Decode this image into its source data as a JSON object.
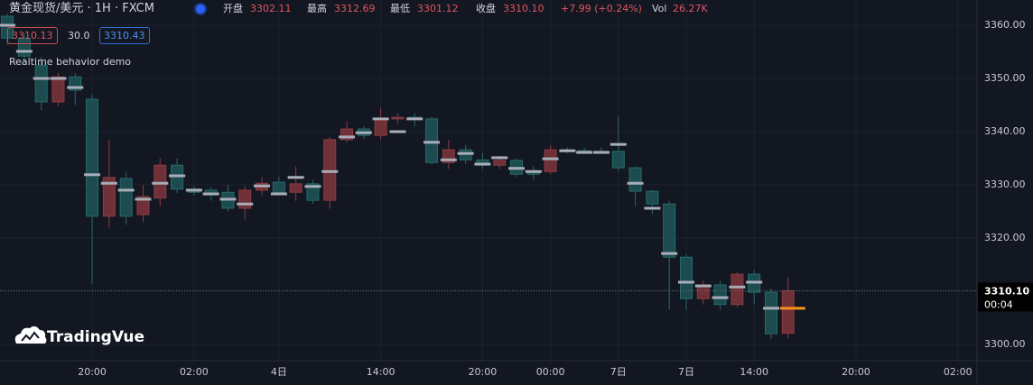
{
  "chart_data": {
    "type": "candlestick",
    "x": [
      0,
      1,
      2,
      3,
      4,
      5,
      6,
      7,
      8,
      9,
      10,
      11,
      12,
      13,
      14,
      15,
      16,
      17,
      18,
      19,
      20,
      21,
      22,
      23,
      24,
      25,
      26,
      27,
      28,
      29,
      30,
      31,
      32,
      33,
      34,
      35,
      36,
      37,
      38,
      39,
      40,
      41,
      42,
      43,
      44,
      45,
      46
    ],
    "open": [
      3361.7,
      3357.6,
      3352.5,
      3345.6,
      3350.3,
      3346.1,
      3324.1,
      3331.2,
      3324.4,
      3327.5,
      3333.7,
      3329.2,
      3329.0,
      3328.6,
      3325.6,
      3329.0,
      3330.5,
      3328.6,
      3330.2,
      3327.1,
      3338.5,
      3340.5,
      3339.3,
      3342.4,
      3342.7,
      3342.4,
      3334.2,
      3336.6,
      3334.7,
      3333.7,
      3334.6,
      3332.5,
      3332.5,
      3336.6,
      3336.4,
      3336.3,
      3336.3,
      3333.2,
      3328.8,
      3326.4,
      3316.4,
      3308.6,
      3311.2,
      3307.5,
      3313.2,
      3309.8,
      3302.11
    ],
    "high": [
      3362.2,
      3358.5,
      3354.0,
      3351.0,
      3351.0,
      3347.0,
      3338.5,
      3332.5,
      3330.0,
      3335.0,
      3335.0,
      3329.8,
      3329.5,
      3330.0,
      3329.8,
      3331.5,
      3331.5,
      3333.5,
      3331.0,
      3339.0,
      3342.0,
      3341.0,
      3344.5,
      3343.5,
      3343.5,
      3342.8,
      3338.5,
      3337.5,
      3336.0,
      3335.5,
      3335.0,
      3333.5,
      3337.5,
      3337.0,
      3337.0,
      3337.0,
      3343.0,
      3333.5,
      3329.0,
      3327.0,
      3317.0,
      3312.0,
      3312.0,
      3313.5,
      3314.0,
      3310.5,
      3312.69
    ],
    "low": [
      3356.3,
      3353.0,
      3344.0,
      3344.8,
      3345.0,
      3311.4,
      3322.0,
      3322.5,
      3323.0,
      3326.0,
      3328.5,
      3328.0,
      3327.0,
      3325.0,
      3323.5,
      3328.0,
      3328.0,
      3327.0,
      3326.5,
      3325.5,
      3338.0,
      3338.6,
      3338.5,
      3341.5,
      3341.0,
      3333.8,
      3333.0,
      3334.0,
      3333.0,
      3333.0,
      3331.5,
      3331.0,
      3332.0,
      3336.0,
      3335.8,
      3335.8,
      3332.5,
      3326.0,
      3324.5,
      3306.6,
      3306.5,
      3307.5,
      3306.5,
      3307.0,
      3307.5,
      3301.0,
      3301.12
    ],
    "close": [
      3357.6,
      3354.2,
      3345.6,
      3350.3,
      3347.8,
      3324.1,
      3331.4,
      3324.1,
      3327.8,
      3333.7,
      3329.2,
      3328.6,
      3328.1,
      3325.6,
      3329.0,
      3330.3,
      3328.6,
      3330.2,
      3327.1,
      3338.5,
      3340.5,
      3339.3,
      3342.4,
      3342.7,
      3342.4,
      3334.2,
      3336.6,
      3334.7,
      3333.7,
      3334.6,
      3332.0,
      3332.0,
      3336.6,
      3336.4,
      3336.3,
      3336.2,
      3333.2,
      3328.8,
      3326.4,
      3316.4,
      3308.6,
      3311.2,
      3307.5,
      3313.2,
      3309.8,
      3302.0,
      3310.1
    ],
    "up_color": "#6f3037",
    "up_border": "#8d3b43",
    "down_color": "#1c4c4f",
    "down_border": "#276a69",
    "overlay": {
      "color": "#a9adb8",
      "last_color": "#f7931a",
      "values": [
        3360,
        3355.1,
        3350,
        3350,
        3348.3,
        3331.9,
        3330.3,
        3329,
        3327.3,
        3330.3,
        3331.7,
        3329,
        3328.3,
        3327.3,
        3326.4,
        3329.8,
        3328.3,
        3331.4,
        3329.7,
        3332.5,
        3339,
        3339.8,
        3342.4,
        3340,
        3342.4,
        3338,
        3334.7,
        3335.9,
        3333.9,
        3335.1,
        3333.1,
        3332.5,
        3334.9,
        3336.4,
        3336.1,
        3336.1,
        3337.6,
        3330.3,
        3325.6,
        3317.1,
        3311.7,
        3311,
        3308.8,
        3310.8,
        3311.7,
        3306.8,
        3306.8
      ]
    },
    "xlim": [
      -0.43,
      57.13
    ],
    "xticks": [
      {
        "value": 5,
        "label": "20:00"
      },
      {
        "value": 11,
        "label": "02:00"
      },
      {
        "value": 16,
        "label": "4日"
      },
      {
        "value": 22,
        "label": "14:00"
      },
      {
        "value": 28,
        "label": "20:00"
      },
      {
        "value": 32,
        "label": "00:00"
      },
      {
        "value": 36,
        "label": "7日"
      },
      {
        "value": 40,
        "label": "7日"
      },
      {
        "value": 44,
        "label": "14:00"
      },
      {
        "value": 50,
        "label": "20:00"
      },
      {
        "value": 56,
        "label": "02:00"
      }
    ],
    "ylim": [
      3296.95,
      3364.75
    ],
    "yticks": [
      {
        "value": 3300,
        "label": "3300.00"
      },
      {
        "value": 3310,
        "label": "3310.00"
      },
      {
        "value": 3320,
        "label": "3320.00"
      },
      {
        "value": 3330,
        "label": "3330.00"
      },
      {
        "value": 3340,
        "label": "3340.00"
      },
      {
        "value": 3350,
        "label": "3350.00"
      },
      {
        "value": 3360,
        "label": "3360.00"
      }
    ],
    "grid": true,
    "last_price": {
      "value": 3310.1,
      "label": "3310.10"
    },
    "countdown": "00:04"
  },
  "header": {
    "symbol": "黄金现货/美元 · 1H · FXCM",
    "items": [
      {
        "label": "开盘",
        "value": "3302.11"
      },
      {
        "label": "最高",
        "value": "3312.69"
      },
      {
        "label": "最低",
        "value": "3301.12"
      },
      {
        "label": "收盘",
        "value": "3310.10"
      }
    ],
    "change": "+7.99 (+0.24%)",
    "vol_label": "Vol",
    "vol": "26.27K"
  },
  "indicator": {
    "lower": "3310.13",
    "period": "30.0",
    "upper": "3310.43"
  },
  "note": "Realtime behavior demo",
  "watermark": "TradingVue"
}
